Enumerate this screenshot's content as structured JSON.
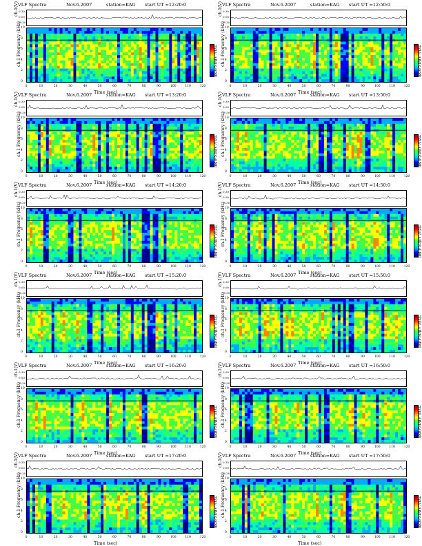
{
  "chart_data": [
    {
      "type": "heatmap",
      "header_left": "VLF Spectra",
      "date": "Nov.6.2007",
      "station": "station=KAG",
      "start": "start  UT  =12:20:0",
      "wave_ylabel": "ch.1(V)",
      "freq_ylabel": "ch.1\nFrequency  (kHz)",
      "xlabel": "Time  (sec)",
      "cbar_label": "log(PSD)(V²/Hz)",
      "xticks": [
        "0",
        "10",
        "20",
        "30",
        "40",
        "50",
        "60",
        "70",
        "80",
        "90",
        "100",
        "110",
        "120"
      ],
      "yticks": [
        "0",
        "2",
        "4",
        "6",
        "8",
        "10"
      ],
      "wave_ticks": [
        "0.30",
        "0.00",
        "-0.30"
      ],
      "cbar_ticks": [
        "-1",
        "-3",
        "-5"
      ],
      "xlim": [
        0,
        120
      ],
      "ylim": [
        0,
        10
      ]
    },
    {
      "type": "heatmap",
      "header_left": "VLF Spectra",
      "date": "Nov.6.2007",
      "station": "station=KAG",
      "start": "start  UT  =12:50:0",
      "wave_ylabel": "ch.1(V)",
      "freq_ylabel": "ch.1\nFrequency  (kHz)",
      "xlabel": "Time  (sec)",
      "cbar_label": "log(PSD)(V²/Hz)",
      "xticks": [
        "0",
        "10",
        "20",
        "30",
        "40",
        "50",
        "60",
        "70",
        "80",
        "90",
        "100",
        "110",
        "120"
      ],
      "yticks": [
        "0",
        "2",
        "4",
        "6",
        "8",
        "10"
      ],
      "wave_ticks": [
        "0.30",
        "0.00",
        "-0.30"
      ],
      "cbar_ticks": [
        "-1",
        "-3",
        "-5"
      ],
      "xlim": [
        0,
        120
      ],
      "ylim": [
        0,
        10
      ]
    },
    {
      "type": "heatmap",
      "header_left": "VLF Spectra",
      "date": "Nov.6.2007",
      "station": "station=KAG",
      "start": "start  UT  =13:20:0",
      "wave_ylabel": "ch.1(V)",
      "freq_ylabel": "ch.1\nFrequency  (kHz)",
      "xlabel": "Time  (sec)",
      "cbar_label": "log(PSD)(V²/Hz)",
      "xticks": [
        "0",
        "10",
        "20",
        "30",
        "40",
        "50",
        "60",
        "70",
        "80",
        "90",
        "100",
        "110",
        "120"
      ],
      "yticks": [
        "0",
        "2",
        "4",
        "6",
        "8",
        "10"
      ],
      "wave_ticks": [
        "0.30",
        "0.00",
        "-0.30"
      ],
      "cbar_ticks": [
        "-1",
        "-3",
        "-5"
      ],
      "xlim": [
        0,
        120
      ],
      "ylim": [
        0,
        10
      ]
    },
    {
      "type": "heatmap",
      "header_left": "VLF Spectra",
      "date": "Nov.6.2007",
      "station": "station=KAG",
      "start": "start  UT  =13:50:0",
      "wave_ylabel": "ch.1(V)",
      "freq_ylabel": "ch.1\nFrequency  (kHz)",
      "xlabel": "Time  (sec)",
      "cbar_label": "log(PSD)(V²/Hz)",
      "xticks": [
        "0",
        "10",
        "20",
        "30",
        "40",
        "50",
        "60",
        "70",
        "80",
        "90",
        "100",
        "110",
        "120"
      ],
      "yticks": [
        "0",
        "2",
        "4",
        "6",
        "8",
        "10"
      ],
      "wave_ticks": [
        "0.30",
        "0.00",
        "-0.30"
      ],
      "cbar_ticks": [
        "-1",
        "-3",
        "-5"
      ],
      "xlim": [
        0,
        120
      ],
      "ylim": [
        0,
        10
      ]
    },
    {
      "type": "heatmap",
      "header_left": "VLF Spectra",
      "date": "Nov.6.2007",
      "station": "station=KAG",
      "start": "start  UT  =14:20:0",
      "wave_ylabel": "ch.1(V)",
      "freq_ylabel": "ch.1\nFrequency  (kHz)",
      "xlabel": "Time  (sec)",
      "cbar_label": "log(PSD)(V²/Hz)",
      "xticks": [
        "0",
        "10",
        "20",
        "30",
        "40",
        "50",
        "60",
        "70",
        "80",
        "90",
        "100",
        "110",
        "120"
      ],
      "yticks": [
        "0",
        "2",
        "4",
        "6",
        "8",
        "10"
      ],
      "wave_ticks": [
        "0.30",
        "0.00",
        "-0.30"
      ],
      "cbar_ticks": [
        "-1",
        "-3",
        "-5"
      ],
      "xlim": [
        0,
        120
      ],
      "ylim": [
        0,
        10
      ]
    },
    {
      "type": "heatmap",
      "header_left": "VLF Spectra",
      "date": "Nov.6.2007",
      "station": "station=KAG",
      "start": "start  UT  =14:50:0",
      "wave_ylabel": "ch.1(V)",
      "freq_ylabel": "ch.1\nFrequency  (kHz)",
      "xlabel": "Time  (sec)",
      "cbar_label": "log(PSD)(V²/Hz)",
      "xticks": [
        "0",
        "10",
        "20",
        "30",
        "40",
        "50",
        "60",
        "70",
        "80",
        "90",
        "100",
        "110",
        "120"
      ],
      "yticks": [
        "0",
        "2",
        "4",
        "6",
        "8",
        "10"
      ],
      "wave_ticks": [
        "0.30",
        "0.00",
        "-0.30"
      ],
      "cbar_ticks": [
        "-1",
        "-3",
        "-5"
      ],
      "xlim": [
        0,
        120
      ],
      "ylim": [
        0,
        10
      ]
    },
    {
      "type": "heatmap",
      "header_left": "VLF Spectra",
      "date": "Nov.6.2007",
      "station": "station=KAG",
      "start": "start  UT  =15:20:0",
      "wave_ylabel": "ch.1(V)",
      "freq_ylabel": "ch.1\nFrequency  (kHz)",
      "xlabel": "Time  (sec)",
      "cbar_label": "log(PSD)(V²/Hz)",
      "xticks": [
        "0",
        "10",
        "20",
        "30",
        "40",
        "50",
        "60",
        "70",
        "80",
        "90",
        "100",
        "110",
        "120"
      ],
      "yticks": [
        "0",
        "2",
        "4",
        "6",
        "8",
        "10"
      ],
      "wave_ticks": [
        "0.30",
        "0.00",
        "-0.30"
      ],
      "cbar_ticks": [
        "-1",
        "-3",
        "-5"
      ],
      "xlim": [
        0,
        120
      ],
      "ylim": [
        0,
        10
      ]
    },
    {
      "type": "heatmap",
      "header_left": "VLF Spectra",
      "date": "Nov.6.2007",
      "station": "station=KAG",
      "start": "start  UT  =15:50:0",
      "wave_ylabel": "ch.1(V)",
      "freq_ylabel": "ch.1\nFrequency  (kHz)",
      "xlabel": "Time  (sec)",
      "cbar_label": "log(PSD)(V²/Hz)",
      "xticks": [
        "0",
        "10",
        "20",
        "30",
        "40",
        "50",
        "60",
        "70",
        "80",
        "90",
        "100",
        "110",
        "120"
      ],
      "yticks": [
        "0",
        "2",
        "4",
        "6",
        "8",
        "10"
      ],
      "wave_ticks": [
        "0.30",
        "0.00",
        "-0.30"
      ],
      "cbar_ticks": [
        "-1",
        "-3",
        "-5"
      ],
      "xlim": [
        0,
        120
      ],
      "ylim": [
        0,
        10
      ]
    },
    {
      "type": "heatmap",
      "header_left": "VLF Spectra",
      "date": "Nov.6.2007",
      "station": "station=KAG",
      "start": "start  UT  =16:20:0",
      "wave_ylabel": "ch.1(V)",
      "freq_ylabel": "ch.1\nFrequency  (kHz)",
      "xlabel": "Time  (sec)",
      "cbar_label": "log(PSD)(V²/Hz)",
      "xticks": [
        "0",
        "10",
        "20",
        "30",
        "40",
        "50",
        "60",
        "70",
        "80",
        "90",
        "100",
        "110",
        "120"
      ],
      "yticks": [
        "0",
        "2",
        "4",
        "6",
        "8",
        "10"
      ],
      "wave_ticks": [
        "0.30",
        "0.00",
        "-0.30"
      ],
      "cbar_ticks": [
        "-1",
        "-3",
        "-5"
      ],
      "xlim": [
        0,
        120
      ],
      "ylim": [
        0,
        10
      ]
    },
    {
      "type": "heatmap",
      "header_left": "VLF Spectra",
      "date": "Nov.6.2007",
      "station": "station=KAG",
      "start": "start  UT  =16:50:0",
      "wave_ylabel": "ch.1(V)",
      "freq_ylabel": "ch.1\nFrequency  (kHz)",
      "xlabel": "Time  (sec)",
      "cbar_label": "log(PSD)(V²/Hz)",
      "xticks": [
        "0",
        "10",
        "20",
        "30",
        "40",
        "50",
        "60",
        "70",
        "80",
        "90",
        "100",
        "110",
        "120"
      ],
      "yticks": [
        "0",
        "2",
        "4",
        "6",
        "8",
        "10"
      ],
      "wave_ticks": [
        "0.30",
        "0.00",
        "-0.30"
      ],
      "cbar_ticks": [
        "-1",
        "-3",
        "-5"
      ],
      "xlim": [
        0,
        120
      ],
      "ylim": [
        0,
        10
      ]
    },
    {
      "type": "heatmap",
      "header_left": "VLF Spectra",
      "date": "Nov.6.2007",
      "station": "station=KAG",
      "start": "start  UT  =17:20:0",
      "wave_ylabel": "ch.1(V)",
      "freq_ylabel": "ch.1\nFrequency  (kHz)",
      "xlabel": "Time  (sec)",
      "cbar_label": "log(PSD)(V²/Hz)",
      "xticks": [
        "0",
        "10",
        "20",
        "30",
        "40",
        "50",
        "60",
        "70",
        "80",
        "90",
        "100",
        "110",
        "120"
      ],
      "yticks": [
        "0",
        "2",
        "4",
        "6",
        "8",
        "10"
      ],
      "wave_ticks": [
        "0.30",
        "0.00",
        "-0.30"
      ],
      "cbar_ticks": [
        "-1",
        "-3",
        "-5"
      ],
      "xlim": [
        0,
        120
      ],
      "ylim": [
        0,
        10
      ]
    },
    {
      "type": "heatmap",
      "header_left": "VLF Spectra",
      "date": "Nov.6.2007",
      "station": "station=KAG",
      "start": "start  UT  =17:50:0",
      "wave_ylabel": "ch.1(V)",
      "freq_ylabel": "ch.1\nFrequency  (kHz)",
      "xlabel": "Time  (sec)",
      "cbar_label": "log(PSD)(V²/Hz)",
      "xticks": [
        "0",
        "10",
        "20",
        "30",
        "40",
        "50",
        "60",
        "70",
        "80",
        "90",
        "100",
        "110",
        "120"
      ],
      "yticks": [
        "0",
        "2",
        "4",
        "6",
        "8",
        "10"
      ],
      "wave_ticks": [
        "0.30",
        "0.00",
        "-0.30"
      ],
      "cbar_ticks": [
        "-1",
        "-3",
        "-5"
      ],
      "xlim": [
        0,
        120
      ],
      "ylim": [
        0,
        10
      ]
    }
  ],
  "colors": {
    "colormap": [
      "#00008a",
      "#0000ff",
      "#00aaff",
      "#00ffaa",
      "#44ff44",
      "#ffff00",
      "#ff8800",
      "#ff0000"
    ]
  }
}
